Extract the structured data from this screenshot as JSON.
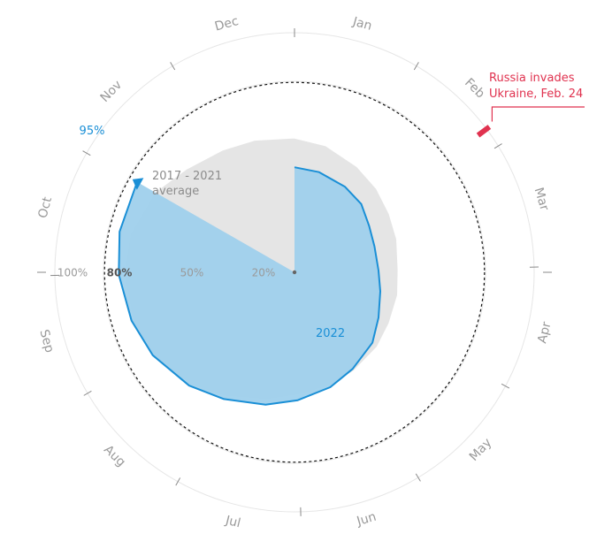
{
  "chart_data": {
    "type": "area",
    "subtype": "radial-cumulative",
    "theta": "day of year, clockwise from top, Jan at top",
    "radius_unit": "%",
    "radial_ticks": [
      {
        "value": 20,
        "label": "20%",
        "emphasis": false
      },
      {
        "value": 50,
        "label": "50%",
        "emphasis": false
      },
      {
        "value": 80,
        "label": "80%",
        "emphasis": true
      },
      {
        "value": 100,
        "label": "100%",
        "emphasis": false
      }
    ],
    "months": [
      "Jan",
      "Feb",
      "Mar",
      "Apr",
      "May",
      "Jun",
      "Jul",
      "Aug",
      "Sep",
      "Oct",
      "Nov",
      "Dec"
    ],
    "series": [
      {
        "name": "2017 - 2021\naverage",
        "color": "#e5e5e5",
        "points": [
          {
            "date": "Jan 1",
            "value": 70
          },
          {
            "date": "Jan 15",
            "value": 68
          },
          {
            "date": "Feb 1",
            "value": 64
          },
          {
            "date": "Feb 15",
            "value": 61
          },
          {
            "date": "Mar 1",
            "value": 58
          },
          {
            "date": "Mar 15",
            "value": 56
          },
          {
            "date": "Apr 1",
            "value": 54
          },
          {
            "date": "Apr 15",
            "value": 55
          },
          {
            "date": "May 1",
            "value": 56
          },
          {
            "date": "May 15",
            "value": 58
          },
          {
            "date": "Jun 1",
            "value": 60
          },
          {
            "date": "Jun 15",
            "value": 62
          },
          {
            "date": "Jul 1",
            "value": 64
          },
          {
            "date": "Jul 15",
            "value": 68
          },
          {
            "date": "Aug 1",
            "value": 74
          },
          {
            "date": "Aug 15",
            "value": 80
          },
          {
            "date": "Sep 1",
            "value": 86
          },
          {
            "date": "Sep 15",
            "value": 88
          },
          {
            "date": "Oct 1",
            "value": 89
          },
          {
            "date": "Oct 15",
            "value": 88
          },
          {
            "date": "Nov 1",
            "value": 84
          },
          {
            "date": "Nov 15",
            "value": 78
          },
          {
            "date": "Dec 1",
            "value": 74
          },
          {
            "date": "Dec 15",
            "value": 72
          },
          {
            "date": "Dec 31",
            "value": 70
          }
        ]
      },
      {
        "name": "2022",
        "color": "#1a8fd6",
        "fill": "#9fd0ec",
        "points": [
          {
            "date": "Jan 1",
            "value": 55
          },
          {
            "date": "Jan 15",
            "value": 54
          },
          {
            "date": "Feb 1",
            "value": 52
          },
          {
            "date": "Feb 15",
            "value": 50
          },
          {
            "date": "Mar 1",
            "value": 46
          },
          {
            "date": "Mar 15",
            "value": 44
          },
          {
            "date": "Apr 1",
            "value": 44
          },
          {
            "date": "Apr 15",
            "value": 46
          },
          {
            "date": "May 1",
            "value": 50
          },
          {
            "date": "May 15",
            "value": 55
          },
          {
            "date": "Jun 1",
            "value": 59
          },
          {
            "date": "Jun 15",
            "value": 63
          },
          {
            "date": "Jul 1",
            "value": 67
          },
          {
            "date": "Jul 15",
            "value": 71
          },
          {
            "date": "Aug 1",
            "value": 76
          },
          {
            "date": "Aug 15",
            "value": 81
          },
          {
            "date": "Sep 1",
            "value": 86
          },
          {
            "date": "Sep 15",
            "value": 89
          },
          {
            "date": "Oct 1",
            "value": 92
          },
          {
            "date": "Oct 15",
            "value": 94
          },
          {
            "date": "Nov 1",
            "value": 95
          }
        ]
      }
    ],
    "latest": {
      "date": "Nov 1",
      "value": 95,
      "label": "95%"
    },
    "target_ring": {
      "value": 80,
      "style": "dashed"
    },
    "annotation": {
      "date": "Feb 24",
      "lines": [
        "Russia invades",
        "Ukraine, Feb. 24"
      ],
      "color": "#e0324f"
    },
    "legend": "inline labels",
    "grid": true
  }
}
